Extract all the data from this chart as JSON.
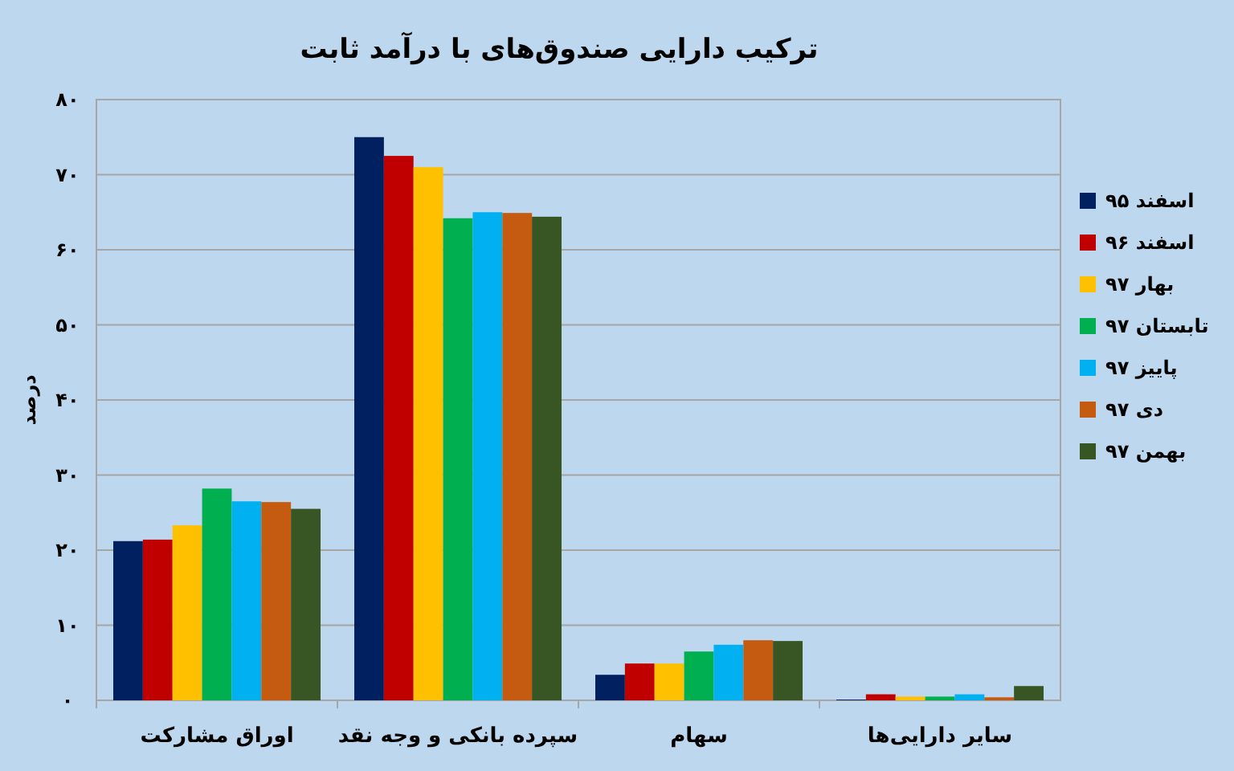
{
  "chart_data": {
    "type": "bar",
    "title": "ترکیب دارایی صندوق‌های با درآمد ثابت",
    "ylabel": "درصد",
    "categories": [
      "اوراق مشارکت",
      "سپرده بانکی و وجه نقد",
      "سهام",
      "سایر دارایی‌ها"
    ],
    "series": [
      {
        "name": "اسفند ۹۵",
        "color": "#002060",
        "values": [
          21.2,
          75.0,
          3.4,
          0.1
        ]
      },
      {
        "name": "اسفند ۹۶",
        "color": "#c00000",
        "values": [
          21.4,
          72.5,
          4.9,
          0.8
        ]
      },
      {
        "name": "بهار ۹۷",
        "color": "#ffc000",
        "values": [
          23.3,
          71.0,
          4.9,
          0.5
        ]
      },
      {
        "name": "تابستان ۹۷",
        "color": "#00b050",
        "values": [
          28.2,
          64.2,
          6.5,
          0.5
        ]
      },
      {
        "name": "پاییز ۹۷",
        "color": "#00b0f0",
        "values": [
          26.5,
          65.0,
          7.4,
          0.8
        ]
      },
      {
        "name": "دی ۹۷",
        "color": "#c55a11",
        "values": [
          26.4,
          64.9,
          8.0,
          0.4
        ]
      },
      {
        "name": "بهمن ۹۷",
        "color": "#375623",
        "values": [
          25.5,
          64.4,
          7.9,
          1.9
        ]
      }
    ],
    "ylim": [
      0,
      80
    ],
    "yticks": [
      {
        "value": 0,
        "label": "۰"
      },
      {
        "value": 10,
        "label": "۱۰"
      },
      {
        "value": 20,
        "label": "۲۰"
      },
      {
        "value": 30,
        "label": "۳۰"
      },
      {
        "value": 40,
        "label": "۴۰"
      },
      {
        "value": 50,
        "label": "۵۰"
      },
      {
        "value": 60,
        "label": "۶۰"
      },
      {
        "value": 70,
        "label": "۷۰"
      },
      {
        "value": 80,
        "label": "۸۰"
      }
    ],
    "grid": "y",
    "legend": "right"
  }
}
